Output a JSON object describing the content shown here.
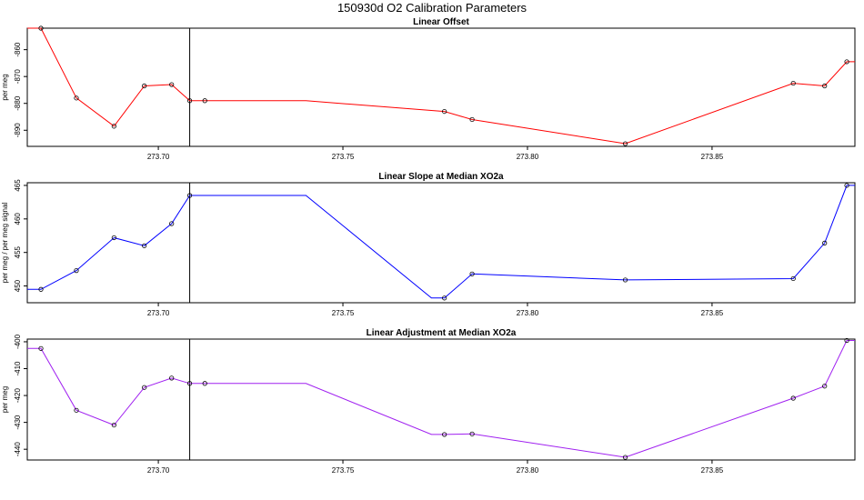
{
  "title": "150930d   O2 Calibration Parameters",
  "colors": {
    "offset_series": "#ff0000",
    "slope_series": "#0000ff",
    "adjustment_series": "#a020f0",
    "markers": "#000000",
    "frame": "#000000"
  },
  "chart_data": [
    {
      "type": "line",
      "title": "Linear Offset",
      "xlabel": "",
      "ylabel": "per meg",
      "xlim": [
        273.6645,
        273.8887
      ],
      "ylim": [
        -896,
        -852
      ],
      "xticks": [
        "273.70",
        "273.75",
        "273.80",
        "273.85"
      ],
      "yticks": [
        "-860",
        "-870",
        "-880",
        "-890"
      ],
      "vline": 273.7085,
      "series": [
        {
          "x": [
            273.6645,
            273.6682,
            273.6778,
            273.688,
            273.6962,
            273.7036,
            273.7085,
            273.7126,
            273.74,
            273.7775,
            273.785,
            273.8265,
            273.872,
            273.8805,
            273.8865,
            273.8887
          ],
          "y": [
            -852.0,
            -852.0,
            -878.0,
            -888.5,
            -873.5,
            -873.0,
            -879.0,
            -879.0,
            -879.0,
            -883.0,
            -886.0,
            -895.0,
            -872.5,
            -873.5,
            -864.5,
            -864.5
          ],
          "markers": [
            false,
            true,
            true,
            true,
            true,
            true,
            true,
            true,
            false,
            true,
            true,
            true,
            true,
            true,
            true,
            false
          ]
        }
      ]
    },
    {
      "type": "line",
      "title": "Linear Slope at Median XO2a",
      "xlabel": "",
      "ylabel": "per meg / per meg signal",
      "xlim": [
        273.6645,
        273.8887
      ],
      "ylim": [
        447.5,
        465.4
      ],
      "xticks": [
        "273.70",
        "273.75",
        "273.80",
        "273.85"
      ],
      "yticks": [
        "465",
        "460",
        "455",
        "450"
      ],
      "vline": 273.7085,
      "series": [
        {
          "x": [
            273.6645,
            273.6682,
            273.6778,
            273.688,
            273.6962,
            273.7036,
            273.7085,
            273.74,
            273.774,
            273.7775,
            273.785,
            273.8265,
            273.872,
            273.8805,
            273.8865,
            273.8887
          ],
          "y": [
            449.5,
            449.5,
            452.3,
            457.2,
            456.0,
            459.3,
            463.5,
            463.5,
            448.2,
            448.2,
            451.8,
            450.9,
            451.1,
            456.4,
            465.0,
            465.0
          ],
          "markers": [
            false,
            true,
            true,
            true,
            true,
            true,
            true,
            false,
            false,
            true,
            true,
            true,
            true,
            true,
            true,
            false
          ]
        }
      ]
    },
    {
      "type": "line",
      "title": "Linear Adjustment at Median XO2a",
      "xlabel": "",
      "ylabel": "per meg",
      "xlim": [
        273.6645,
        273.8887
      ],
      "ylim": [
        -444,
        -399
      ],
      "xticks": [
        "273.70",
        "273.75",
        "273.80",
        "273.85"
      ],
      "yticks": [
        "-400",
        "-410",
        "-420",
        "-430",
        "-440"
      ],
      "vline": 273.7085,
      "series": [
        {
          "x": [
            273.6645,
            273.6682,
            273.6778,
            273.688,
            273.6962,
            273.7036,
            273.7085,
            273.7126,
            273.74,
            273.774,
            273.7775,
            273.785,
            273.8265,
            273.872,
            273.8805,
            273.8865,
            273.8887
          ],
          "y": [
            -402.5,
            -402.5,
            -425.5,
            -431.0,
            -417.0,
            -413.5,
            -415.5,
            -415.5,
            -415.5,
            -434.5,
            -434.5,
            -434.3,
            -443.0,
            -421.0,
            -416.5,
            -399.5,
            -399.5
          ],
          "markers": [
            false,
            true,
            true,
            true,
            true,
            true,
            true,
            true,
            false,
            false,
            true,
            true,
            true,
            true,
            true,
            true,
            false
          ]
        }
      ]
    }
  ]
}
